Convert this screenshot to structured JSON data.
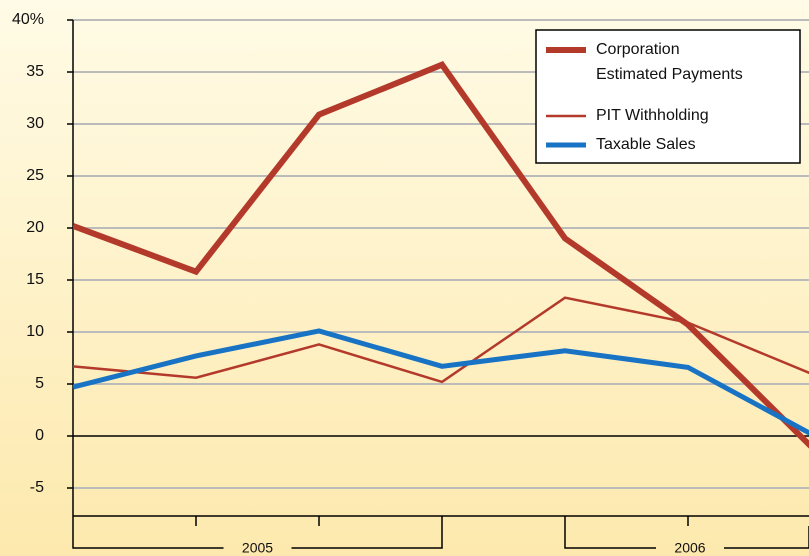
{
  "chart_data": {
    "type": "line",
    "categories": [
      null,
      null,
      null,
      null,
      null,
      null,
      null
    ],
    "x_groups": [
      {
        "label": "2005",
        "start": 0,
        "end": 3
      },
      {
        "label": "2006",
        "start": 4,
        "end": 6
      }
    ],
    "series": [
      {
        "name": "Corporation Estimated Payments",
        "color": "#b33a2b",
        "width": 6,
        "values": [
          20.2,
          15.8,
          30.9,
          35.7,
          19.0,
          10.7,
          -1.0
        ]
      },
      {
        "name": "PIT Withholding",
        "color": "#b33a2b",
        "width": 2.5,
        "values": [
          6.7,
          5.6,
          8.8,
          5.2,
          13.3,
          10.9,
          6.0
        ]
      },
      {
        "name": "Taxable Sales",
        "color": "#1873c4",
        "width": 5,
        "values": [
          4.7,
          7.7,
          10.1,
          6.7,
          8.2,
          6.6,
          0.2
        ]
      }
    ],
    "ylim": [
      -5,
      40
    ],
    "yticks": [
      -5,
      0,
      5,
      10,
      15,
      20,
      25,
      30,
      35,
      {
        "value": 40,
        "label": "40%"
      }
    ],
    "grid": true,
    "legend": "top-right"
  }
}
